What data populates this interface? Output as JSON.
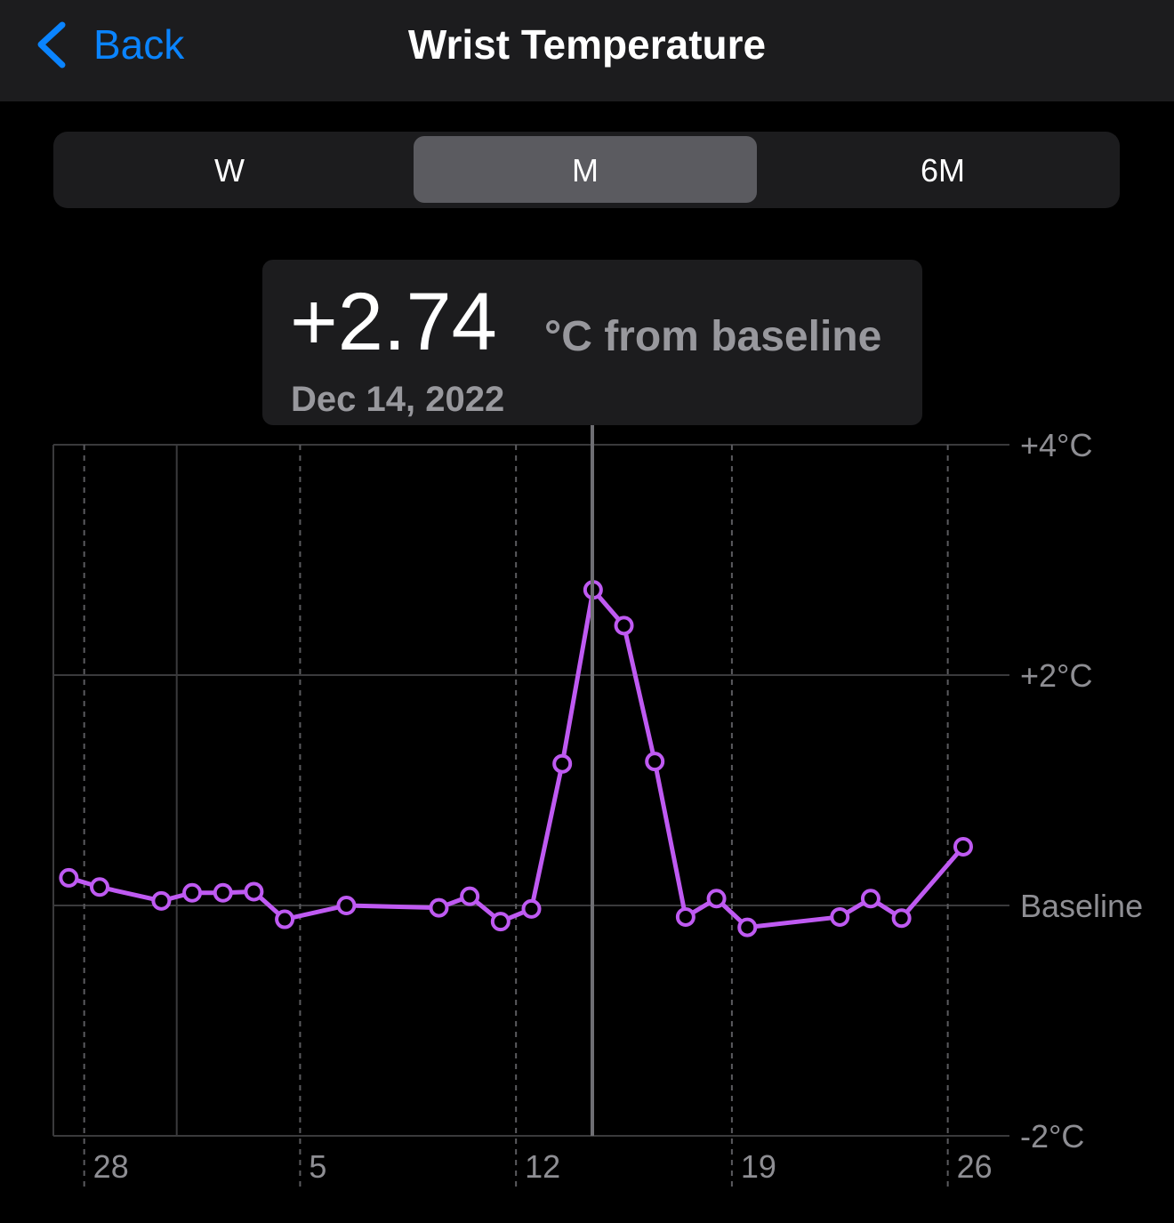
{
  "header": {
    "back": "Back",
    "title": "Wrist Temperature"
  },
  "segments": [
    "W",
    "M",
    "6M"
  ],
  "tooltip": {
    "value": "+2.74",
    "unit": "°C from baseline",
    "date": "Dec 14, 2022"
  },
  "chart_data": {
    "type": "line",
    "categories": [
      null,
      "28",
      null,
      null,
      null,
      null,
      null,
      null,
      "5",
      null,
      null,
      null,
      null,
      null,
      null,
      "12",
      null,
      null,
      null,
      null,
      null,
      null,
      "19",
      null,
      null,
      null,
      null,
      null,
      null,
      "26",
      null
    ],
    "values": [
      0.24,
      0.16,
      null,
      0.04,
      0.11,
      0.11,
      0.12,
      -0.12,
      null,
      0.0,
      null,
      null,
      -0.02,
      0.08,
      -0.14,
      -0.03,
      1.23,
      2.74,
      2.43,
      1.25,
      -0.1,
      0.06,
      -0.19,
      null,
      null,
      -0.1,
      0.06,
      -0.11,
      null,
      0.51,
      null
    ],
    "color": "#bf5af2",
    "ylim": [
      -2,
      4
    ],
    "yticks": [
      {
        "value": -2,
        "label": "-2°C"
      },
      {
        "value": 0,
        "label": "Baseline"
      },
      {
        "value": 2,
        "label": "+2°C"
      },
      {
        "value": 4,
        "label": "+4°C"
      }
    ],
    "grid": true
  }
}
